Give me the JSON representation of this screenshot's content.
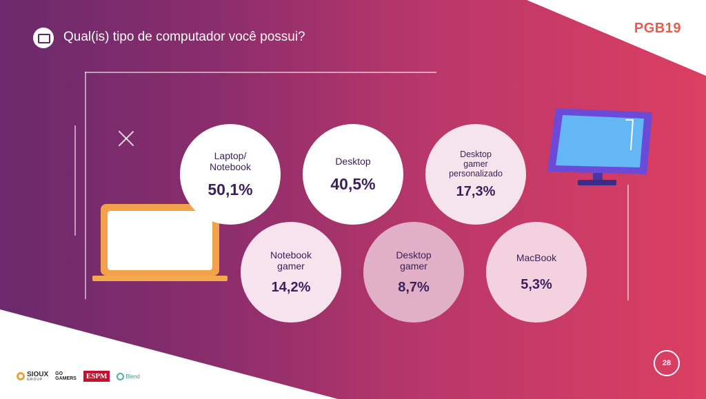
{
  "title": "Qual(is) tipo de computador você possui?",
  "logo": "PGB19",
  "page_number": "28",
  "bubbles": [
    {
      "label_lines": [
        "Laptop/",
        "Notebook"
      ],
      "value": "50,1%"
    },
    {
      "label_lines": [
        "Desktop"
      ],
      "value": "40,5%"
    },
    {
      "label_lines": [
        "Desktop",
        "gamer",
        "personalizado"
      ],
      "value": "17,3%"
    },
    {
      "label_lines": [
        "Notebook",
        "gamer"
      ],
      "value": "14,2%"
    },
    {
      "label_lines": [
        "Desktop",
        "gamer"
      ],
      "value": "8,7%"
    },
    {
      "label_lines": [
        "MacBook"
      ],
      "value": "5,3%"
    }
  ],
  "brands": {
    "sioux": "SIOUX",
    "sioux_sub": "GROUP",
    "go_line1": "GO",
    "go_line2": "GAMERS",
    "espm": "ESPM",
    "blend": "Blend"
  },
  "colors": {
    "gradient_start": "#6a2a6b",
    "gradient_end": "#dc3f62",
    "bubble_text": "#3b1f5c",
    "logo": "#ec5a4e",
    "laptop_frame": "#f2a24a",
    "monitor_frame": "#6b4ad8",
    "monitor_screen": "#63b7f5"
  }
}
